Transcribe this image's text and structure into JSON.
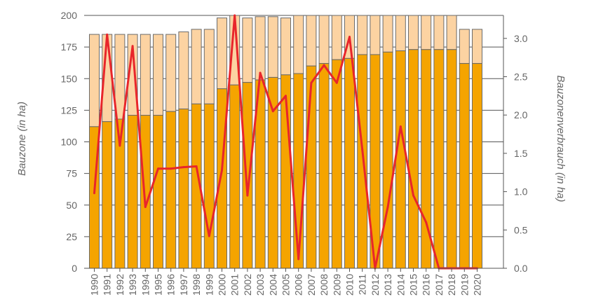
{
  "chart_data": {
    "type": "bar",
    "categories": [
      "1990",
      "1991",
      "1992",
      "1993",
      "1994",
      "1995",
      "1996",
      "1997",
      "1998",
      "1999",
      "2000",
      "2001",
      "2002",
      "2003",
      "2004",
      "2005",
      "2006",
      "2007",
      "2008",
      "2009",
      "2010",
      "2011",
      "2012",
      "2013",
      "2014",
      "2015",
      "2016",
      "2017",
      "2018",
      "2019",
      "2020"
    ],
    "bar_values_overbuilt": [
      112,
      116,
      118,
      121,
      121,
      121,
      124,
      126,
      130,
      130,
      142,
      145,
      147,
      149,
      151,
      153,
      154,
      160,
      162,
      165,
      166,
      169,
      169,
      171,
      172,
      173,
      173,
      173,
      173,
      162,
      162
    ],
    "bar_values_total": [
      185,
      185,
      185,
      185,
      185,
      185,
      185,
      187,
      189,
      189,
      198,
      200,
      198,
      199,
      199,
      198,
      200,
      200,
      200,
      200,
      200,
      200,
      200,
      200,
      200,
      200,
      200,
      200,
      200,
      189,
      189
    ],
    "line_values": [
      0.98,
      3.05,
      1.6,
      2.9,
      0.8,
      1.3,
      1.3,
      1.32,
      1.33,
      0.42,
      1.28,
      3.3,
      0.95,
      2.55,
      2.05,
      2.25,
      0.12,
      2.42,
      2.65,
      2.42,
      3.02,
      1.55,
      0.0,
      0.8,
      1.85,
      0.95,
      0.6,
      0.0,
      0.0,
      0.0,
      0.0
    ],
    "ylabel": "Bauzone (in ha)",
    "ylabel_right": "Bauzonenverbrauch (in ha)",
    "ylim": [
      0,
      200
    ],
    "ylim_right": [
      0,
      3.3
    ],
    "yticks": [
      0,
      25,
      50,
      75,
      100,
      125,
      150,
      175,
      200
    ],
    "yticks_right": [
      "0.0",
      "0.5",
      "1.0",
      "1.5",
      "2.0",
      "2.5",
      "3.0"
    ],
    "grid": true,
    "colors": {
      "bar_lower": "#F5A400",
      "bar_upper": "#FCD3A2",
      "bar_edge": "#6b6b6b",
      "line": "#E8262B"
    }
  }
}
